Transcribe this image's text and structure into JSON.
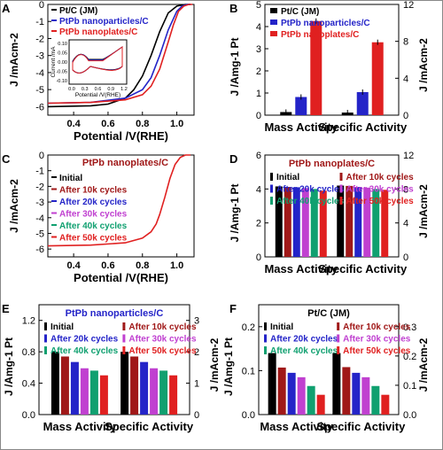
{
  "figure": {
    "panel_labels": [
      "A",
      "B",
      "C",
      "D",
      "E",
      "F"
    ],
    "colors": {
      "black": "#000000",
      "blue": "#2424c8",
      "red": "#e02020",
      "darkred": "#a01818",
      "teal": "#10a070",
      "magenta": "#c040d0",
      "gray": "#777777"
    }
  },
  "chart_data": [
    {
      "panel": "A",
      "type": "line",
      "xlabel": "Potential /V(RHE)",
      "ylabel": "J /mAcm-2",
      "xlim": [
        0.25,
        1.1
      ],
      "ylim": [
        -6.5,
        0
      ],
      "xticks": [
        "0.4",
        "0.6",
        "0.8",
        "1.0"
      ],
      "yticks": [
        "-6",
        "-5",
        "-4",
        "-3",
        "-2",
        "-1",
        "0"
      ],
      "legend_position": "top-left",
      "series": [
        {
          "name": "Pt/C (JM)",
          "color": "#000000",
          "x": [
            0.25,
            0.5,
            0.6,
            0.7,
            0.75,
            0.8,
            0.85,
            0.9,
            0.95,
            1.0,
            1.05,
            1.08
          ],
          "y": [
            -6.0,
            -5.95,
            -5.85,
            -5.5,
            -5.0,
            -4.2,
            -3.0,
            -1.6,
            -0.5,
            -0.1,
            0,
            0
          ]
        },
        {
          "name": "PtPb nanoparticles/C",
          "color": "#2424c8",
          "x": [
            0.25,
            0.5,
            0.7,
            0.8,
            0.85,
            0.9,
            0.95,
            1.0,
            1.03,
            1.06,
            1.08
          ],
          "y": [
            -5.8,
            -5.75,
            -5.5,
            -5.0,
            -4.3,
            -3.0,
            -1.5,
            -0.4,
            -0.1,
            0,
            0
          ]
        },
        {
          "name": "PtPb nanoplates/C",
          "color": "#e02020",
          "x": [
            0.25,
            0.5,
            0.7,
            0.8,
            0.85,
            0.9,
            0.95,
            0.98,
            1.01,
            1.04,
            1.07,
            1.09
          ],
          "y": [
            -5.8,
            -5.75,
            -5.6,
            -5.3,
            -4.8,
            -3.8,
            -2.2,
            -1.2,
            -0.4,
            -0.1,
            0,
            0
          ]
        }
      ],
      "inset": {
        "xlabel": "Potential /V(RHE)",
        "ylabel": "Current /mA",
        "xticks": [
          "0.0",
          "0.3",
          "0.6",
          "0.9",
          "1.2"
        ],
        "yticks": [
          "0.10",
          "0.05",
          "0.00",
          "-0.05",
          "-0.10"
        ]
      }
    },
    {
      "panel": "B",
      "type": "bar",
      "categories": [
        "Mass Activity",
        "Specific Activity"
      ],
      "ylabel": "J /Amg-1 Pt",
      "y2label": "J /mAcm-2",
      "ylim": [
        0,
        5
      ],
      "y2lim": [
        0,
        12
      ],
      "yticks": [
        "0",
        "1",
        "2",
        "3",
        "4",
        "5"
      ],
      "y2ticks": [
        "0",
        "4",
        "8",
        "12"
      ],
      "legend_position": "top-left",
      "series": [
        {
          "name": "Pt/C (JM)",
          "color": "#000000",
          "values": [
            0.14,
            0.28
          ]
        },
        {
          "name": "PtPb nanoparticles/C",
          "color": "#2424c8",
          "values": [
            0.82,
            2.5
          ]
        },
        {
          "name": "PtPb nanoplates/C",
          "color": "#e02020",
          "values": [
            4.25,
            7.9
          ]
        }
      ]
    },
    {
      "panel": "C",
      "type": "line",
      "title": "PtPb nanoplates/C",
      "xlabel": "Potential /V(RHE)",
      "ylabel": "J /mAcm-2",
      "xlim": [
        0.25,
        1.1
      ],
      "ylim": [
        -6.5,
        0
      ],
      "xticks": [
        "0.4",
        "0.6",
        "0.8",
        "1.0"
      ],
      "yticks": [
        "-6",
        "-5",
        "-4",
        "-3",
        "-2",
        "-1",
        "0"
      ],
      "legend_position": "top-left",
      "series": [
        {
          "name": "Initial",
          "color": "#000000"
        },
        {
          "name": "After 10k cycles",
          "color": "#a01818"
        },
        {
          "name": "After 20k cycles",
          "color": "#2424c8"
        },
        {
          "name": "After 30k cycles",
          "color": "#c040d0"
        },
        {
          "name": "After 40k cycles",
          "color": "#10a070"
        },
        {
          "name": "After 50k cycles",
          "color": "#e02020",
          "x": [
            0.25,
            0.5,
            0.7,
            0.8,
            0.85,
            0.88,
            0.9,
            0.93,
            0.96,
            0.99,
            1.02,
            1.05,
            1.08
          ],
          "y": [
            -5.8,
            -5.75,
            -5.6,
            -5.3,
            -4.9,
            -4.4,
            -3.8,
            -2.7,
            -1.5,
            -0.6,
            -0.15,
            0,
            0
          ]
        }
      ]
    },
    {
      "panel": "D",
      "type": "bar",
      "title": "PtPb nanoplates/C",
      "categories": [
        "Mass Activity",
        "Specific Activity"
      ],
      "ylabel": "J /Amg-1 Pt",
      "y2label": "J /mAcm-2",
      "ylim": [
        0,
        6
      ],
      "y2lim": [
        0,
        12
      ],
      "yticks": [
        "0",
        "2",
        "4",
        "6"
      ],
      "y2ticks": [
        "0",
        "4",
        "8",
        "12"
      ],
      "legend_position": "top",
      "series": [
        {
          "name": "Initial",
          "color": "#000000",
          "values": [
            4.15,
            4.2
          ]
        },
        {
          "name": "After 10k cycles",
          "color": "#a01818",
          "values": [
            4.12,
            4.18
          ]
        },
        {
          "name": "After 20k cycles",
          "color": "#2424c8",
          "values": [
            4.1,
            4.12
          ]
        },
        {
          "name": "After 30k cycles",
          "color": "#c040d0",
          "values": [
            4.05,
            4.08
          ]
        },
        {
          "name": "After 40k cycles",
          "color": "#10a070",
          "values": [
            4.0,
            4.0
          ]
        },
        {
          "name": "After 50k cycles",
          "color": "#e02020",
          "values": [
            3.9,
            3.95
          ]
        }
      ]
    },
    {
      "panel": "E",
      "type": "bar",
      "title": "PtPb nanoparticles/C",
      "categories": [
        "Mass Activity",
        "Specific Activity"
      ],
      "ylabel": "J /Amg-1 Pt",
      "y2label": "J /mAcm-2",
      "ylim": [
        0,
        1.4
      ],
      "y2lim": [
        0,
        3.5
      ],
      "yticks": [
        "0.0",
        "0.4",
        "0.8",
        "1.2"
      ],
      "y2ticks": [
        "0",
        "1",
        "2",
        "3"
      ],
      "legend_position": "top",
      "series": [
        {
          "name": "Initial",
          "color": "#000000",
          "values": [
            0.8,
            0.8
          ]
        },
        {
          "name": "After 10k cycles",
          "color": "#a01818",
          "values": [
            0.74,
            0.74
          ]
        },
        {
          "name": "After 20k cycles",
          "color": "#2424c8",
          "values": [
            0.67,
            0.67
          ]
        },
        {
          "name": "After 30k cycles",
          "color": "#c040d0",
          "values": [
            0.59,
            0.59
          ]
        },
        {
          "name": "After 40k cycles",
          "color": "#10a070",
          "values": [
            0.56,
            0.56
          ]
        },
        {
          "name": "After 50k cycles",
          "color": "#e02020",
          "values": [
            0.5,
            0.5
          ]
        }
      ]
    },
    {
      "panel": "F",
      "type": "bar",
      "title": "Pt/C (JM)",
      "categories": [
        "Mass Activity",
        "Specific Activity"
      ],
      "ylabel": "J /Amg-1 Pt",
      "y2label": "J /mAcm-2",
      "ylim": [
        0,
        0.25
      ],
      "y2lim": [
        0,
        0.375
      ],
      "yticks": [
        "0.0",
        "0.1",
        "0.2"
      ],
      "y2ticks": [
        "0.0",
        "0.1",
        "0.2",
        "0.3"
      ],
      "legend_position": "top",
      "series": [
        {
          "name": "Initial",
          "color": "#000000",
          "values": [
            0.14,
            0.14
          ]
        },
        {
          "name": "After 10k cycles",
          "color": "#a01818",
          "values": [
            0.107,
            0.108
          ]
        },
        {
          "name": "After 20k cycles",
          "color": "#2424c8",
          "values": [
            0.095,
            0.095
          ]
        },
        {
          "name": "After 30k cycles",
          "color": "#c040d0",
          "values": [
            0.085,
            0.085
          ]
        },
        {
          "name": "After 40k cycles",
          "color": "#10a070",
          "values": [
            0.065,
            0.065
          ]
        },
        {
          "name": "After 50k cycles",
          "color": "#e02020",
          "values": [
            0.045,
            0.045
          ]
        }
      ]
    }
  ]
}
